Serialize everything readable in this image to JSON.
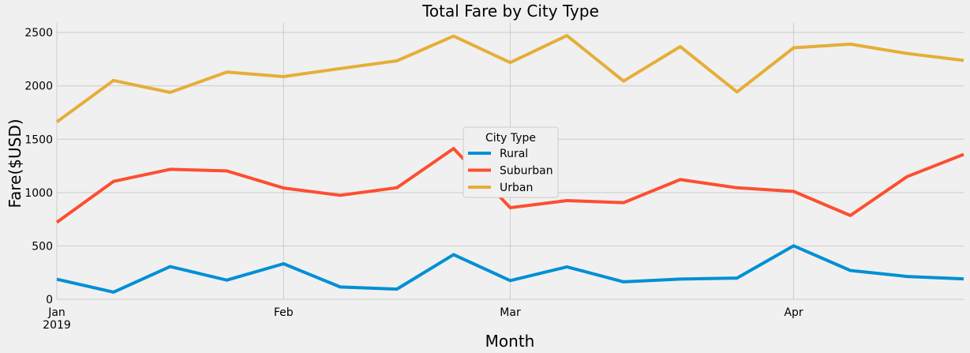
{
  "chart_data": {
    "type": "line",
    "title": "Total Fare by City Type",
    "xlabel": "Month",
    "ylabel": "Fare($USD)",
    "x": [
      "2019-01-06",
      "2019-01-13",
      "2019-01-20",
      "2019-01-27",
      "2019-02-03",
      "2019-02-10",
      "2019-02-17",
      "2019-02-24",
      "2019-03-03",
      "2019-03-10",
      "2019-03-17",
      "2019-03-24",
      "2019-03-31",
      "2019-04-07",
      "2019-04-14",
      "2019-04-21",
      "2019-04-28"
    ],
    "xlim": [
      "2019-01-06",
      "2019-04-28"
    ],
    "xticks": [
      {
        "date": "2019-01-06",
        "label": "Jan",
        "sublabel": "2019"
      },
      {
        "date": "2019-02-03",
        "label": "Feb",
        "sublabel": ""
      },
      {
        "date": "2019-03-03",
        "label": "Mar",
        "sublabel": ""
      },
      {
        "date": "2019-04-07",
        "label": "Apr",
        "sublabel": ""
      }
    ],
    "ylim": [
      0,
      2590
    ],
    "yticks": [
      0,
      500,
      1000,
      1500,
      2000,
      2500
    ],
    "grid": true,
    "legend": {
      "title": "City Type",
      "position": "center"
    },
    "series": [
      {
        "name": "Rural",
        "color": "#008fd5",
        "values": [
          187.92,
          67.65,
          306.0,
          179.69,
          333.08,
          115.8,
          95.82,
          419.06,
          175.14,
          303.94,
          163.39,
          189.76,
          199.42,
          501.24,
          269.79,
          214.14,
          191.85
        ]
      },
      {
        "name": "Suburban",
        "color": "#fc4f30",
        "values": [
          721.6,
          1105.13,
          1218.2,
          1203.28,
          1042.79,
          974.34,
          1045.5,
          1412.74,
          858.46,
          925.27,
          905.87,
          1122.2,
          1045.06,
          1010.73,
          784.82,
          1149.27,
          1357.75
        ]
      },
      {
        "name": "Urban",
        "color": "#e5ae38",
        "values": [
          1661.68,
          2050.43,
          1939.02,
          2129.51,
          2086.94,
          2162.64,
          2235.07,
          2466.29,
          2218.2,
          2470.93,
          2044.42,
          2368.37,
          1943.22,
          2356.7,
          2390.9,
          2303.8,
          2238.29
        ]
      }
    ]
  }
}
